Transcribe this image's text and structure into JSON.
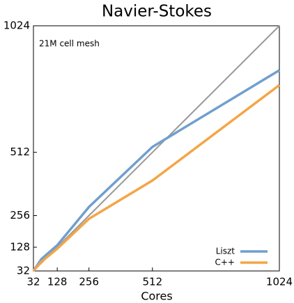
{
  "chart_data": {
    "type": "line",
    "title": "Navier-Stokes",
    "annotation": "21M cell mesh",
    "x_label": "Cores",
    "x": [
      32,
      64,
      128,
      256,
      512,
      1024
    ],
    "series": [
      {
        "color": "#999999",
        "values": [
          32,
          64,
          128,
          256,
          512,
          1024
        ]
      },
      {
        "name": "Liszt",
        "color": "#6f9fce",
        "values": [
          32,
          80,
          136,
          291,
          534,
          844
        ]
      },
      {
        "name": "C++",
        "color": "#f4a547",
        "values": [
          32,
          69,
          122,
          243,
          398,
          784
        ]
      }
    ],
    "xlim": [
      32,
      1024
    ],
    "xticks": [
      32,
      128,
      256,
      512,
      1024
    ],
    "ylim": [
      32,
      1024
    ],
    "yticks": [
      32,
      128,
      256,
      512,
      1024
    ],
    "legend": "lower right"
  }
}
